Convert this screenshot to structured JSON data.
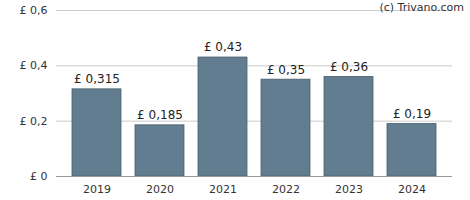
{
  "chart_data": {
    "type": "bar",
    "annotations": [
      "(c) Trivano.com"
    ],
    "categories": [
      "2019",
      "2020",
      "2021",
      "2022",
      "2023",
      "2024"
    ],
    "values": [
      0.315,
      0.185,
      0.43,
      0.35,
      0.36,
      0.19
    ],
    "value_labels": [
      "£ 0,315",
      "£ 0,185",
      "£ 0,43",
      "£ 0,35",
      "£ 0,36",
      "£ 0,19"
    ],
    "data_labels": true,
    "color": "#627d8f",
    "ylim": [
      0,
      0.6
    ],
    "yticks": [
      {
        "value": 0,
        "label": "£ 0"
      },
      {
        "value": 0.2,
        "label": "£ 0,2"
      },
      {
        "value": 0.4,
        "label": "£ 0,4"
      },
      {
        "value": 0.6,
        "label": "£ 0,6"
      }
    ],
    "grid": true
  }
}
